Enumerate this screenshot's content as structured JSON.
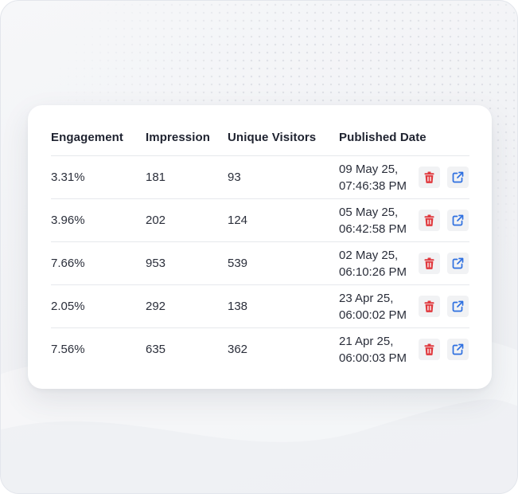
{
  "table": {
    "headers": [
      "Engagement",
      "Impression",
      "Unique Visitors",
      "Published Date"
    ],
    "rows": [
      {
        "engagement": "3.31%",
        "impression": "181",
        "visitors": "93",
        "date_line1": "09 May 25,",
        "date_line2": "07:46:38 PM"
      },
      {
        "engagement": "3.96%",
        "impression": "202",
        "visitors": "124",
        "date_line1": "05 May 25,",
        "date_line2": "06:42:58 PM"
      },
      {
        "engagement": "7.66%",
        "impression": "953",
        "visitors": "539",
        "date_line1": "02 May 25,",
        "date_line2": "06:10:26 PM"
      },
      {
        "engagement": "2.05%",
        "impression": "292",
        "visitors": "138",
        "date_line1": "23 Apr 25,",
        "date_line2": "06:00:02 PM"
      },
      {
        "engagement": "7.56%",
        "impression": "635",
        "visitors": "362",
        "date_line1": "21 Apr 25,",
        "date_line2": "06:00:03 PM"
      }
    ]
  },
  "icons": {
    "delete": "trash-icon",
    "open": "external-link-icon"
  },
  "colors": {
    "delete": "#e0393e",
    "open": "#2d6fe0",
    "button_bg": "#f1f2f4",
    "text": "#2a2e3a",
    "divider": "#e6e8ec"
  }
}
